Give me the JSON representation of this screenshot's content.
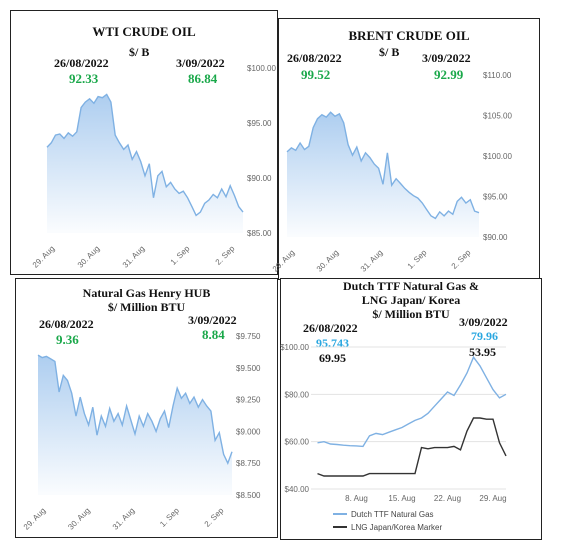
{
  "colors": {
    "area_stroke": "#7fb1e3",
    "area_fill": "#a9cbef",
    "green": "#1aa84a",
    "ttf": "#7fb1e3",
    "lng": "#333333",
    "cyan": "#2aa7e0"
  },
  "chart_data": [
    {
      "type": "area",
      "title": "WTI CRUDE OIL",
      "unit": "$/ B",
      "label_left_date": "26/08/2022",
      "label_left_value": "92.33",
      "label_right_date": "3/09/2022",
      "label_right_value": "86.84",
      "x_ticks": [
        "29. Aug",
        "30. Aug",
        "31. Aug",
        "1. Sep",
        "2. Sep"
      ],
      "y_ticks": [
        "$85.00",
        "$90.00",
        "$95.00",
        "$100.00"
      ],
      "ylim": [
        85,
        100
      ],
      "values": [
        92.8,
        93.2,
        93.9,
        94.0,
        93.6,
        94.1,
        93.8,
        94.2,
        96.4,
        96.9,
        97.2,
        96.8,
        97.4,
        97.3,
        97.6,
        96.9,
        93.9,
        93.2,
        92.6,
        93.0,
        91.7,
        92.4,
        91.5,
        90.2,
        91.3,
        88.2,
        90.2,
        90.6,
        89.2,
        89.6,
        89.0,
        88.6,
        88.8,
        88.2,
        87.4,
        86.6,
        86.9,
        87.7,
        88.0,
        88.5,
        88.2,
        89.0,
        88.3,
        89.3,
        88.4,
        87.4,
        86.9
      ]
    },
    {
      "type": "area",
      "title": "BRENT  CRUDE OIL",
      "unit": "$/ B",
      "label_left_date": "26/08/2022",
      "label_left_value": "99.52",
      "label_right_date": "3/09/2022",
      "label_right_value": "92.99",
      "x_ticks": [
        "29. Aug",
        "30. Aug",
        "31. Aug",
        "1. Sep",
        "2. Sep"
      ],
      "y_ticks": [
        "$90.00",
        "$95.00",
        "$100.00",
        "$105.00",
        "$110.00"
      ],
      "ylim": [
        90,
        110
      ],
      "values": [
        100.5,
        101.0,
        100.7,
        101.6,
        100.8,
        101.2,
        103.5,
        104.6,
        105.1,
        104.8,
        105.4,
        104.9,
        105.2,
        104.1,
        101.4,
        100.1,
        101.1,
        99.4,
        100.4,
        99.8,
        99.0,
        98.5,
        96.5,
        100.4,
        96.4,
        97.2,
        96.6,
        96.0,
        95.5,
        95.1,
        94.8,
        94.2,
        93.4,
        92.6,
        92.3,
        93.1,
        92.6,
        93.2,
        92.8,
        94.4,
        94.9,
        94.2,
        94.6,
        93.2,
        93.0
      ]
    },
    {
      "type": "area",
      "title": "Natural Gas  Henry HUB",
      "unit": "$/ Million BTU",
      "label_left_date": "26/08/2022",
      "label_left_value": "9.36",
      "label_right_date": "3/09/2022",
      "label_right_value": "8.84",
      "x_ticks": [
        "29. Aug",
        "30. Aug",
        "31. Aug",
        "1. Sep",
        "2. Sep"
      ],
      "y_ticks": [
        "$8.500",
        "$8.750",
        "$9.000",
        "$9.250",
        "$9.500",
        "$9.750"
      ],
      "ylim": [
        8.5,
        9.75
      ],
      "values": [
        9.6,
        9.58,
        9.59,
        9.57,
        9.55,
        9.31,
        9.44,
        9.4,
        9.3,
        9.12,
        9.27,
        9.14,
        9.05,
        9.19,
        8.97,
        9.12,
        9.04,
        9.18,
        9.08,
        9.14,
        9.05,
        9.2,
        9.09,
        8.98,
        9.12,
        9.04,
        9.14,
        9.08,
        9.0,
        9.1,
        9.16,
        9.03,
        9.2,
        9.34,
        9.26,
        9.3,
        9.22,
        9.27,
        9.19,
        9.25,
        9.2,
        9.16,
        8.93,
        8.99,
        8.82,
        8.75,
        8.84
      ]
    },
    {
      "type": "line",
      "title_line1": "Dutch TTF Natural Gas &",
      "title_line2": "LNG Japan/ Korea",
      "unit": "$/ Million BTU",
      "label_left_date": "26/08/2022",
      "label_left_value_ttf": "95.743",
      "label_left_value_lng": "69.95",
      "label_right_date": "3/09/2022",
      "label_right_value_ttf": "79.96",
      "label_right_value_lng": "53.95",
      "x_ticks": [
        "8. Aug",
        "15. Aug",
        "22. Aug",
        "29. Aug"
      ],
      "y_ticks": [
        "$40.00",
        "$60.00",
        "$80.00",
        "$100.00"
      ],
      "ylim": [
        40,
        100
      ],
      "xlim": [
        1,
        31
      ],
      "legend": [
        "Dutch TTF Natural Gas",
        "LNG Japan/Korea Marker"
      ],
      "series": [
        {
          "name": "Dutch TTF Natural Gas",
          "x": [
            2,
            3,
            4,
            5,
            6,
            7,
            8,
            9,
            10,
            11,
            12,
            13,
            14,
            15,
            16,
            17,
            18,
            19,
            20,
            21,
            22,
            23,
            24,
            25,
            26,
            27,
            28,
            29,
            30,
            31
          ],
          "values": [
            59.5,
            60.0,
            59.0,
            58.8,
            58.5,
            58.3,
            58.2,
            58.0,
            62.5,
            63.5,
            63.0,
            64.0,
            65.0,
            66.0,
            67.5,
            69.0,
            70.0,
            72.0,
            75.0,
            78.0,
            81.0,
            79.5,
            84.0,
            89.0,
            95.7,
            92.0,
            87.0,
            82.0,
            78.5,
            80.0
          ]
        },
        {
          "name": "LNG Japan/Korea Marker",
          "x": [
            2,
            3,
            4,
            5,
            6,
            7,
            8,
            9,
            10,
            11,
            12,
            13,
            14,
            15,
            16,
            17,
            18,
            19,
            20,
            21,
            22,
            23,
            24,
            25,
            26,
            27,
            28,
            29,
            30,
            31
          ],
          "values": [
            46.5,
            45.5,
            45.5,
            45.5,
            45.5,
            45.5,
            45.5,
            45.5,
            46.5,
            46.5,
            46.5,
            46.5,
            46.5,
            46.5,
            46.5,
            46.5,
            57.5,
            57.0,
            57.5,
            57.5,
            57.5,
            58.0,
            56.5,
            64.5,
            70.0,
            70.0,
            69.5,
            69.5,
            59.5,
            54.0
          ]
        }
      ]
    }
  ]
}
